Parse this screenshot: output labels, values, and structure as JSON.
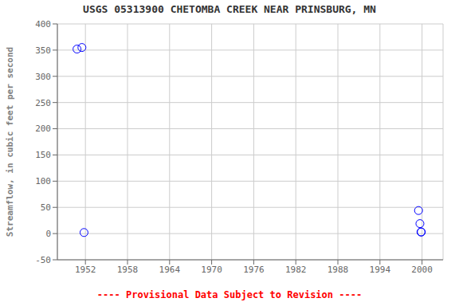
{
  "chart_data": {
    "type": "scatter",
    "title": "USGS 05313900 CHETOMBA CREEK NEAR PRINSBURG, MN",
    "y_label": "Streamflow, in cubic feet per second",
    "annotations": [
      {
        "text": "---- Provisional Data Subject to Revision ----",
        "color": "#FF0000"
      }
    ],
    "x": [
      1950.8,
      1951.5,
      1951.8,
      1999.5,
      1999.7,
      1999.85,
      1999.9
    ],
    "values": [
      352,
      355,
      2,
      44,
      19,
      3,
      3
    ],
    "color": "#0000FF",
    "marker": "circle",
    "xlim": [
      1948,
      2003
    ],
    "ylim": [
      -50,
      400
    ],
    "xticks": [
      1952,
      1958,
      1964,
      1970,
      1976,
      1982,
      1988,
      1994,
      2000
    ],
    "yticks": [
      -50,
      0,
      50,
      100,
      150,
      200,
      250,
      300,
      350,
      400
    ],
    "grid": true
  }
}
